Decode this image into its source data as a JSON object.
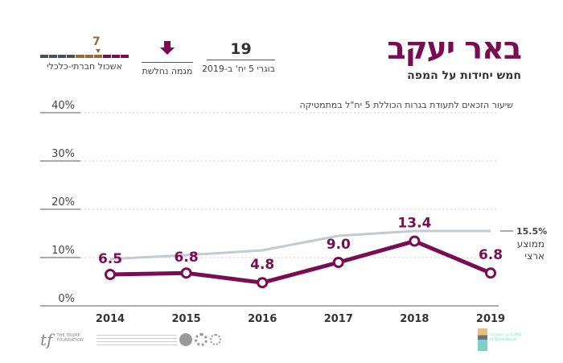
{
  "header": {
    "title": "באר יעקב",
    "subtitle": "חמש יחידות על המפה"
  },
  "stats": [
    {
      "value": "19",
      "label": "בוגרי 5 יח' ב-2019"
    },
    {
      "icon": "arrow-down-icon",
      "label": "מגמה נחלשת"
    },
    {
      "value": "7",
      "label": "אשכול חברתי-כלכלי",
      "cluster_segments": 10,
      "cluster_colors": [
        "#7a0d52",
        "#7a0d52",
        "#7a0d52",
        "#9a6a3a",
        "#9a6a3a",
        "#9a6a3a",
        "#4a5258",
        "#4a5258",
        "#4a5258",
        "#4a5258"
      ]
    }
  ],
  "colors": {
    "accent": "#7a0d52",
    "national": "#c3cbd0",
    "cluster_marker": "#9a6a3a"
  },
  "chart_data": {
    "type": "line",
    "subtitle": "שיעור הזכאים לתעודת בגרות הכוללת 5 יח\"ל במתמטיקה",
    "categories": [
      "2014",
      "2015",
      "2016",
      "2017",
      "2018",
      "2019"
    ],
    "ylim": [
      0,
      40
    ],
    "yticks": [
      "0%",
      "10%",
      "20%",
      "30%",
      "40%"
    ],
    "grid": true,
    "series": [
      {
        "values": [
          6.5,
          6.8,
          4.8,
          9.0,
          13.4,
          6.8
        ],
        "labels": [
          "6.5",
          "6.8",
          "4.8",
          "9.0",
          "13.4",
          "6.8"
        ],
        "color": "#7a0d52"
      },
      {
        "name": "ממוצע ארצי",
        "values": [
          9.7,
          10.5,
          11.5,
          14.5,
          15.5,
          15.5
        ],
        "end_label": "15.5%",
        "color": "#c3cbd0"
      }
    ]
  },
  "footer": {
    "logo_left": "THE TRUMP FOUNDATION",
    "logo_right": "ערי מצוינות Cities of Excellence"
  }
}
